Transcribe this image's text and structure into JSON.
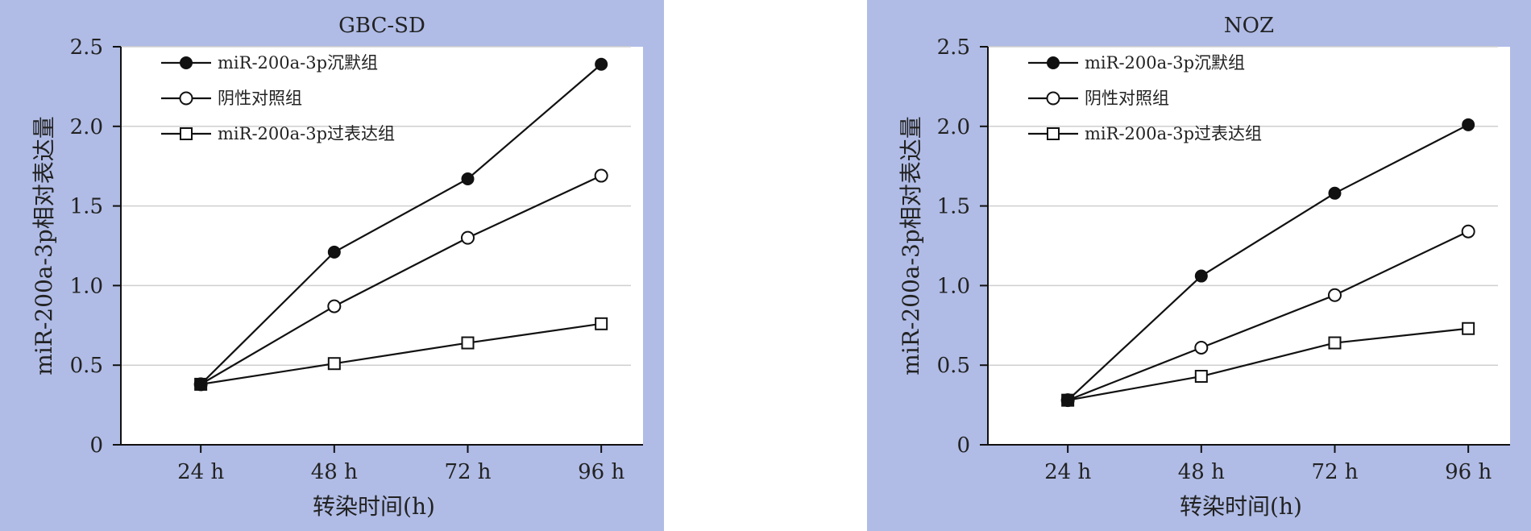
{
  "chart_data": [
    {
      "type": "line",
      "title": "GBC-SD",
      "xlabel": "转染时间(h)",
      "ylabel": "miR-200a-3p相对表达量",
      "categories": [
        "24 h",
        "48 h",
        "72 h",
        "96 h"
      ],
      "yticks": [
        "0",
        "0.5",
        "1.0",
        "1.5",
        "2.0",
        "2.5"
      ],
      "ylim": [
        0,
        2.5
      ],
      "grid": true,
      "legend_position": "top-left",
      "series": [
        {
          "name": "miR-200a-3p沉默组",
          "marker": "filled-circle",
          "values": [
            0.38,
            1.21,
            1.67,
            2.39
          ]
        },
        {
          "name": "阴性对照组",
          "marker": "open-circle",
          "values": [
            0.38,
            0.87,
            1.3,
            1.69
          ]
        },
        {
          "name": "miR-200a-3p过表达组",
          "marker": "open-square",
          "values": [
            0.38,
            0.51,
            0.64,
            0.76
          ]
        }
      ],
      "colors": {
        "background": "#b0bce6",
        "plot": "#ffffff",
        "line": "#111111",
        "grid": "#cfcfcf"
      }
    },
    {
      "type": "line",
      "title": "NOZ",
      "xlabel": "转染时间(h)",
      "ylabel": "miR-200a-3p相对表达量",
      "categories": [
        "24 h",
        "48 h",
        "72 h",
        "96 h"
      ],
      "yticks": [
        "0",
        "0.5",
        "1.0",
        "1.5",
        "2.0",
        "2.5"
      ],
      "ylim": [
        0,
        2.5
      ],
      "grid": true,
      "legend_position": "top-left",
      "series": [
        {
          "name": "miR-200a-3p沉默组",
          "marker": "filled-circle",
          "values": [
            0.28,
            1.06,
            1.58,
            2.01
          ]
        },
        {
          "name": "阴性对照组",
          "marker": "open-circle",
          "values": [
            0.28,
            0.61,
            0.94,
            1.34
          ]
        },
        {
          "name": "miR-200a-3p过表达组",
          "marker": "open-square",
          "values": [
            0.28,
            0.43,
            0.64,
            0.73
          ]
        }
      ],
      "colors": {
        "background": "#b0bce6",
        "plot": "#ffffff",
        "line": "#111111",
        "grid": "#cfcfcf"
      }
    }
  ]
}
